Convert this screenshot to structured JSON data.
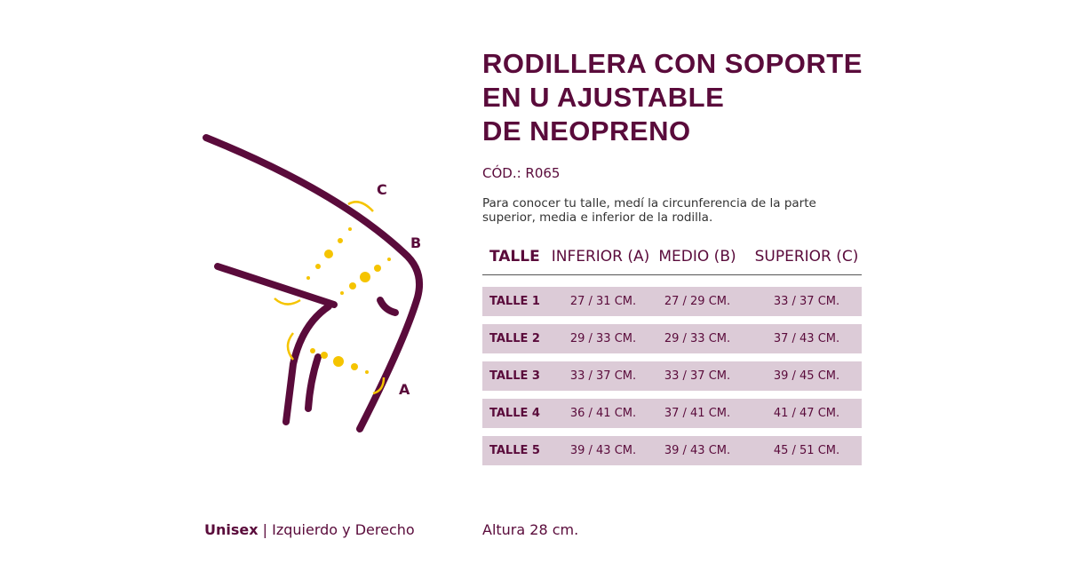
{
  "title": [
    "RODILLERA CON SOPORTE",
    "EN U AJUSTABLE",
    "DE NEOPRENO"
  ],
  "code": "CÓD.: R065",
  "instructions": [
    "Para conocer tu talle, medí la circunferencia de la parte",
    "superior, media e inferior de la rodilla."
  ],
  "diagram": {
    "labels": [
      "C",
      "B",
      "A"
    ]
  },
  "table": {
    "headers": [
      "TALLE",
      "INFERIOR (A)",
      "MEDIO (B)",
      "SUPERIOR (C)"
    ],
    "rows": [
      [
        "TALLE 1",
        "27 / 31 CM.",
        "27 / 29 CM.",
        "33 / 37 CM."
      ],
      [
        "TALLE 2",
        "29 / 33 CM.",
        "29 / 33 CM.",
        "37 / 43 CM."
      ],
      [
        "TALLE 3",
        "33 / 37 CM.",
        "33 / 37 CM.",
        "39 / 45 CM."
      ],
      [
        "TALLE 4",
        "36 / 41 CM.",
        "37 / 41 CM.",
        "41 / 47 CM."
      ],
      [
        "TALLE 5",
        "39 / 43 CM.",
        "39 / 43 CM.",
        "45 / 51 CM."
      ]
    ]
  },
  "footer": {
    "gender": "Unisex",
    "sides": "| Izquierdo y Derecho",
    "height": "Altura 28 cm."
  }
}
